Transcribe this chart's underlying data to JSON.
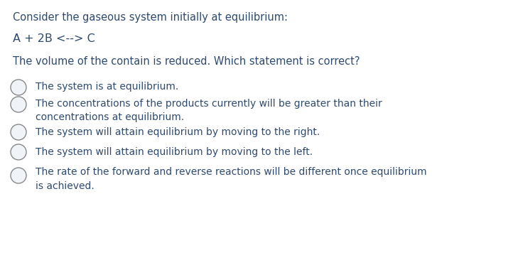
{
  "background_color": "#ffffff",
  "text_color": "#2e4a6e",
  "title_line": "Consider the gaseous system initially at equilibrium:",
  "equation_line": "A + 2B <--> C",
  "question_line": "The volume of the contain is reduced. Which statement is correct?",
  "options": [
    "The system is at equilibrium.",
    "The concentrations of the products currently will be greater than their\nconcentrations at equilibrium.",
    "The system will attain equilibrium by moving to the right.",
    "The system will attain equilibrium by moving to the left.",
    "The rate of the forward and reverse reactions will be different once equilibrium\nis achieved."
  ],
  "font_size_title": 10.5,
  "font_size_equation": 11.5,
  "font_size_question": 10.5,
  "font_size_options": 10.0,
  "figsize": [
    7.29,
    3.87
  ],
  "dpi": 100
}
